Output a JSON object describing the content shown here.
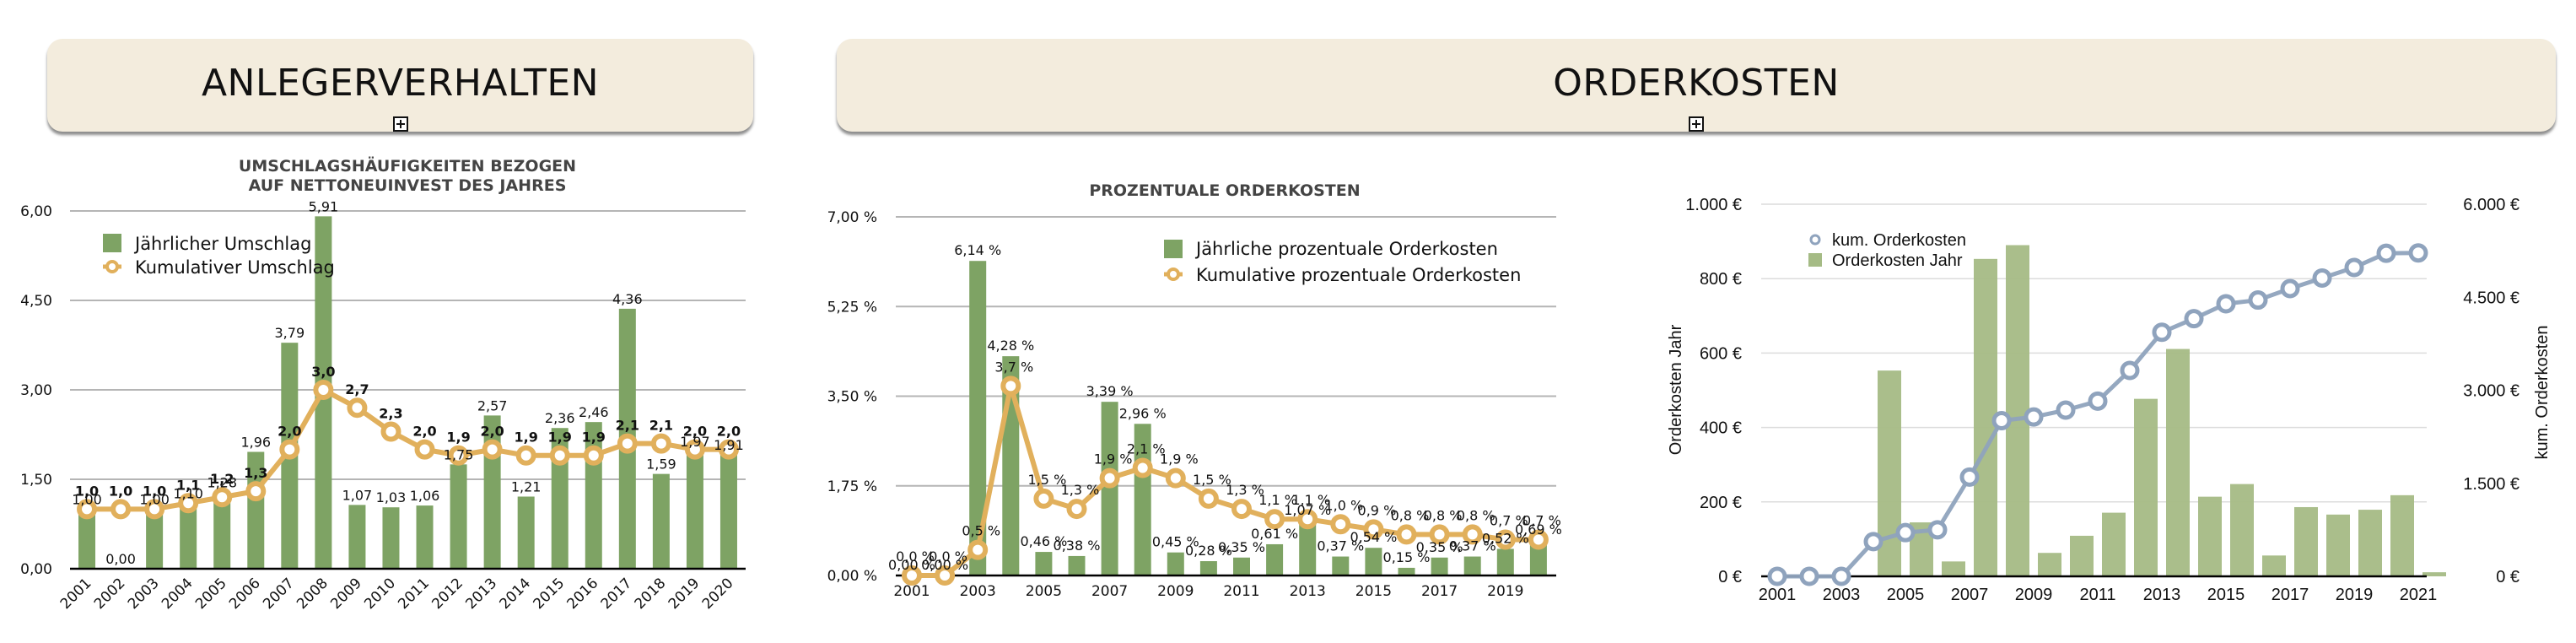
{
  "sections": {
    "left_title": "ANLEGERVERHALTEN",
    "right_title": "ORDERKOSTEN",
    "expand_icon": "plus-square-icon"
  },
  "colors": {
    "banner": "#f3ecdd",
    "bar_green": "#7ea364",
    "line_gold": "#e1b05c",
    "bar_green_light": "#a5bb85",
    "line_blue": "#8fa3bd"
  },
  "chart_data": [
    {
      "type": "bar",
      "title": "UMSCHLAGSHÄUFIGKEITEN BEZOGEN AUF NETTONEUINVEST DES JAHRES",
      "title_lines": [
        "UMSCHLAGSHÄUFIGKEITEN BEZOGEN",
        "AUF NETTONEUINVEST DES JAHRES"
      ],
      "xlabel": "",
      "ylabel": "",
      "ylim": [
        0,
        6
      ],
      "yticks": [
        "0,00",
        "1,50",
        "3,00",
        "4,50",
        "6,00"
      ],
      "grid": true,
      "legend_position": "top-left",
      "categories": [
        "2001",
        "2002",
        "2003",
        "2004",
        "2005",
        "2006",
        "2007",
        "2008",
        "2009",
        "2010",
        "2011",
        "2012",
        "2013",
        "2014",
        "2015",
        "2016",
        "2017",
        "2018",
        "2019",
        "2020"
      ],
      "series": [
        {
          "name": "Jährlicher Umschlag",
          "kind": "bar",
          "values": [
            1.0,
            0.0,
            1.0,
            1.1,
            1.28,
            1.96,
            3.79,
            5.91,
            1.07,
            1.03,
            1.06,
            1.75,
            2.57,
            1.21,
            2.36,
            2.46,
            4.36,
            1.59,
            1.97,
            1.91
          ],
          "labels": [
            "1,00",
            "0,00",
            "1,00",
            "1,10",
            "1,28",
            "1,96",
            "3,79",
            "5,91",
            "1,07",
            "1,03",
            "1,06",
            "1,75",
            "2,57",
            "1,21",
            "2,36",
            "2,46",
            "4,36",
            "1,59",
            "1,97",
            "1,91"
          ]
        },
        {
          "name": "Kumulativer Umschlag",
          "kind": "line",
          "values": [
            1.0,
            1.0,
            1.0,
            1.1,
            1.2,
            1.3,
            2.0,
            3.0,
            2.7,
            2.3,
            2.0,
            1.9,
            2.0,
            1.9,
            1.9,
            1.9,
            2.1,
            2.1,
            2.0,
            2.0
          ],
          "labels": [
            "1,0",
            "1,0",
            "1,0",
            "1,1",
            "1,2",
            "1,3",
            "2,0",
            "3,0",
            "2,7",
            "2,3",
            "2,0",
            "1,9",
            "2,0",
            "1,9",
            "1,9",
            "1,9",
            "2,1",
            "2,1",
            "2,0",
            "2,0"
          ]
        }
      ]
    },
    {
      "type": "bar",
      "title": "PROZENTUALE ORDERKOSTEN",
      "xlabel": "",
      "ylabel": "",
      "ylim": [
        0,
        7
      ],
      "yticks": [
        "0,00 %",
        "1,75 %",
        "3,50 %",
        "5,25 %",
        "7,00 %"
      ],
      "grid": true,
      "legend_position": "top-right",
      "categories": [
        "2001",
        "2002",
        "2003",
        "2004",
        "2005",
        "2006",
        "2007",
        "2008",
        "2009",
        "2010",
        "2011",
        "2012",
        "2013",
        "2014",
        "2015",
        "2016",
        "2017",
        "2018",
        "2019",
        "2020"
      ],
      "xtick_labels": [
        "2001",
        "2003",
        "2005",
        "2007",
        "2009",
        "2011",
        "2013",
        "2015",
        "2017",
        "2019"
      ],
      "series": [
        {
          "name": "Jährliche prozentuale Orderkosten",
          "kind": "bar",
          "values": [
            0.0,
            0.0,
            6.14,
            4.28,
            0.46,
            0.38,
            3.39,
            2.96,
            0.45,
            0.28,
            0.35,
            0.61,
            1.07,
            0.37,
            0.54,
            0.15,
            0.35,
            0.37,
            0.52,
            0.69
          ],
          "labels": [
            "0,00 %",
            "0,00 %",
            "6,14 %",
            "4,28 %",
            "0,46 %",
            "0,38 %",
            "3,39 %",
            "2,96 %",
            "0,45 %",
            "0,28 %",
            "0,35 %",
            "0,61 %",
            "1,07 %",
            "0,37 %",
            "0,54 %",
            "0,15 %",
            "0,35 %",
            "0,37 %",
            "0,52 %",
            "0,69 %"
          ]
        },
        {
          "name": "Kumulative prozentuale Orderkosten",
          "kind": "line",
          "values": [
            0.0,
            0.0,
            0.5,
            3.7,
            1.5,
            1.3,
            1.9,
            2.1,
            1.9,
            1.5,
            1.3,
            1.1,
            1.1,
            1.0,
            0.9,
            0.8,
            0.8,
            0.8,
            0.7,
            0.7
          ],
          "labels": [
            "0,0 %",
            "0,0 %",
            "0,5 %",
            "3,7 %",
            "1,5 %",
            "1,3 %",
            "1,9 %",
            "2,1 %",
            "1,9 %",
            "1,5 %",
            "1,3 %",
            "1,1 %",
            "1,1 %",
            "1,0 %",
            "0,9 %",
            "0,8 %",
            "0,8 %",
            "0,8 %",
            "0,7 %",
            "0,7 %"
          ]
        }
      ]
    },
    {
      "type": "bar",
      "title": "",
      "xlabel": "",
      "ylabel": "Orderkosten Jahr",
      "ylabel_right": "kum. Orderkosten",
      "ylim": [
        0,
        1000
      ],
      "ylim_right": [
        0,
        6000
      ],
      "yticks": [
        "0 €",
        "200 €",
        "400 €",
        "600 €",
        "800 €",
        "1.000 €"
      ],
      "yticks_right": [
        "0 €",
        "1.500 €",
        "3.000 €",
        "4.500 €",
        "6.000 €"
      ],
      "grid": true,
      "legend_position": "top-left",
      "categories": [
        "2001",
        "2002",
        "2003",
        "2004",
        "2005",
        "2006",
        "2007",
        "2008",
        "2009",
        "2010",
        "2011",
        "2012",
        "2013",
        "2014",
        "2015",
        "2016",
        "2017",
        "2018",
        "2019",
        "2020",
        "2021"
      ],
      "xtick_labels": [
        "2001",
        "2003",
        "2005",
        "2007",
        "2009",
        "2011",
        "2013",
        "2015",
        "2017",
        "2019",
        "2021"
      ],
      "series": [
        {
          "name": "kum. Orderkosten",
          "kind": "line",
          "axis": "right",
          "values": [
            0,
            0,
            0,
            560,
            705,
            750,
            1600,
            2510,
            2570,
            2680,
            2825,
            3320,
            3935,
            4155,
            4395,
            4455,
            4640,
            4810,
            4980,
            5210,
            5215
          ]
        },
        {
          "name": "Orderkosten Jahr",
          "kind": "bar",
          "axis": "left",
          "values": [
            0,
            0,
            0,
            553,
            145,
            40,
            853,
            890,
            63,
            109,
            171,
            477,
            611,
            214,
            248,
            56,
            186,
            166,
            179,
            218,
            11
          ]
        }
      ]
    }
  ]
}
